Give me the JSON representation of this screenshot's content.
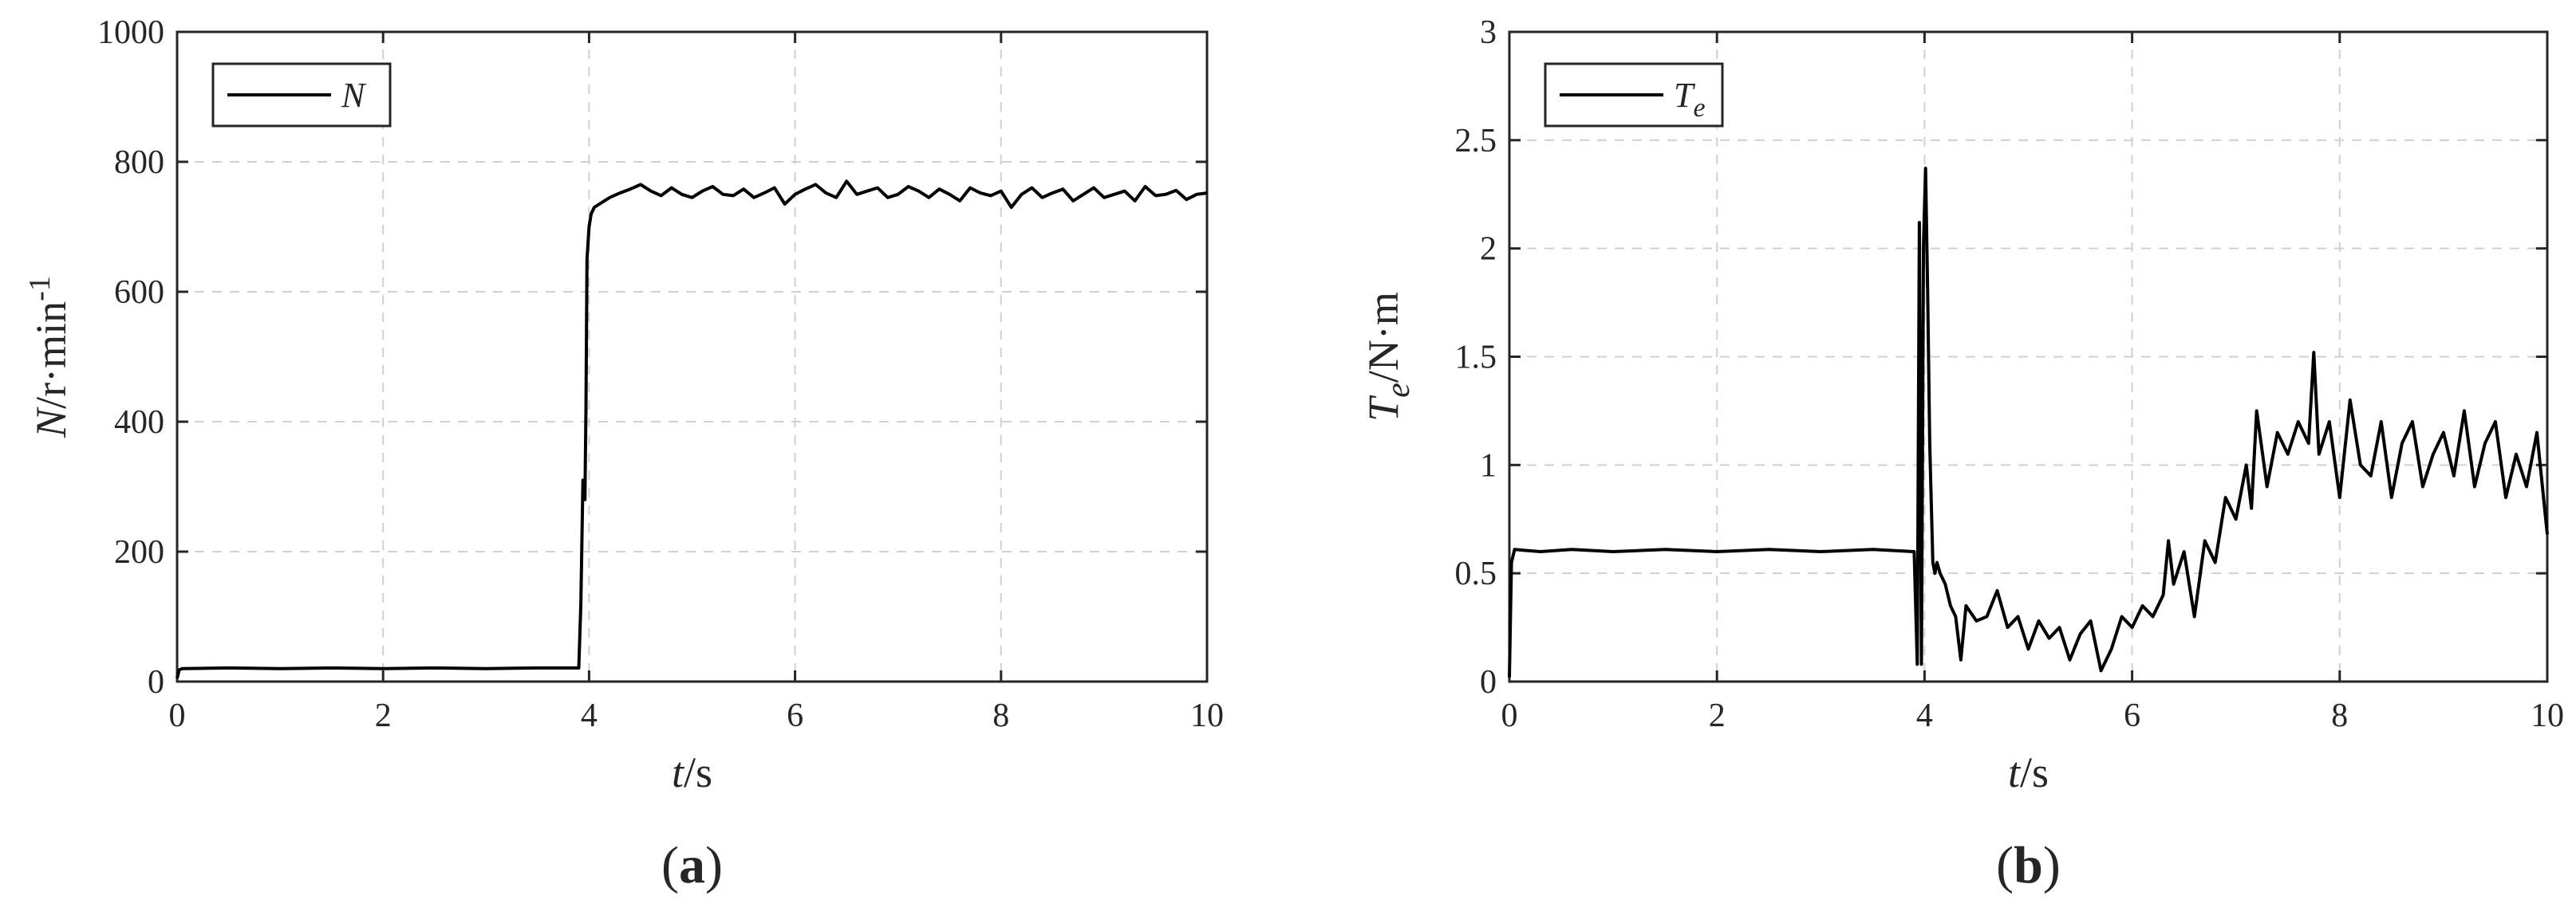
{
  "chart_data": [
    {
      "panel_label": "(a)",
      "panel_letter": "a",
      "type": "line",
      "xlabel_var": "t",
      "xlabel_unit": "/s",
      "ylabel_var": "N",
      "ylabel_unit": "/r·min",
      "ylabel_sup": "-1",
      "xlim": [
        0,
        10
      ],
      "ylim": [
        0,
        1000
      ],
      "xticks": [
        0,
        2,
        4,
        6,
        8,
        10
      ],
      "yticks": [
        0,
        200,
        400,
        600,
        800,
        1000
      ],
      "grid": true,
      "legend_position": "top-left",
      "series": [
        {
          "name": "N",
          "color": "#000000",
          "x": [
            0,
            0.02,
            0.05,
            0.5,
            1.0,
            1.5,
            2.0,
            2.5,
            3.0,
            3.5,
            3.9,
            3.92,
            3.94,
            3.96,
            3.97,
            3.98,
            4.0,
            4.02,
            4.05,
            4.1,
            4.2,
            4.3,
            4.4,
            4.5,
            4.6,
            4.7,
            4.8,
            4.9,
            5.0,
            5.1,
            5.2,
            5.3,
            5.4,
            5.5,
            5.6,
            5.7,
            5.8,
            5.9,
            6.0,
            6.1,
            6.2,
            6.3,
            6.4,
            6.5,
            6.6,
            6.7,
            6.8,
            6.9,
            7.0,
            7.1,
            7.2,
            7.3,
            7.4,
            7.5,
            7.6,
            7.7,
            7.8,
            7.9,
            8.0,
            8.1,
            8.2,
            8.3,
            8.4,
            8.5,
            8.6,
            8.7,
            8.8,
            8.9,
            9.0,
            9.1,
            9.2,
            9.3,
            9.4,
            9.5,
            9.6,
            9.7,
            9.8,
            9.9,
            10.0
          ],
          "values": [
            5,
            18,
            20,
            21,
            20,
            21,
            20,
            21,
            20,
            21,
            21,
            120,
            310,
            280,
            420,
            650,
            700,
            720,
            730,
            735,
            745,
            752,
            758,
            765,
            755,
            748,
            760,
            750,
            745,
            755,
            762,
            750,
            748,
            758,
            745,
            752,
            760,
            735,
            750,
            758,
            765,
            752,
            745,
            770,
            750,
            755,
            760,
            745,
            750,
            762,
            755,
            745,
            758,
            750,
            740,
            760,
            752,
            748,
            755,
            730,
            750,
            760,
            745,
            752,
            758,
            740,
            750,
            760,
            745,
            750,
            755,
            740,
            762,
            748,
            750,
            756,
            742,
            750,
            752
          ]
        }
      ]
    },
    {
      "panel_label": "(b)",
      "panel_letter": "b",
      "type": "line",
      "xlabel_var": "t",
      "xlabel_unit": "/s",
      "ylabel_var": "T",
      "ylabel_sub": "e",
      "ylabel_unit": "/N·m",
      "xlim": [
        0,
        10
      ],
      "ylim": [
        0,
        3
      ],
      "xticks": [
        0,
        2,
        4,
        6,
        8,
        10
      ],
      "yticks": [
        0,
        0.5,
        1,
        1.5,
        2,
        2.5,
        3
      ],
      "grid": true,
      "legend_position": "top-left",
      "series": [
        {
          "name": "T",
          "name_sub": "e",
          "color": "#000000",
          "x": [
            0,
            0.02,
            0.05,
            0.3,
            0.6,
            1.0,
            1.5,
            2.0,
            2.5,
            3.0,
            3.5,
            3.9,
            3.93,
            3.95,
            3.97,
            3.99,
            4.01,
            4.03,
            4.05,
            4.08,
            4.1,
            4.12,
            4.15,
            4.2,
            4.25,
            4.3,
            4.35,
            4.4,
            4.5,
            4.6,
            4.7,
            4.8,
            4.9,
            5.0,
            5.1,
            5.2,
            5.3,
            5.4,
            5.5,
            5.6,
            5.7,
            5.8,
            5.9,
            6.0,
            6.1,
            6.2,
            6.3,
            6.35,
            6.4,
            6.5,
            6.6,
            6.7,
            6.8,
            6.9,
            7.0,
            7.1,
            7.15,
            7.2,
            7.3,
            7.4,
            7.5,
            7.6,
            7.7,
            7.75,
            7.8,
            7.9,
            8.0,
            8.1,
            8.2,
            8.3,
            8.4,
            8.5,
            8.6,
            8.7,
            8.8,
            8.9,
            9.0,
            9.1,
            9.2,
            9.3,
            9.4,
            9.5,
            9.6,
            9.7,
            9.8,
            9.9,
            10.0
          ],
          "values": [
            0.02,
            0.55,
            0.61,
            0.6,
            0.61,
            0.6,
            0.61,
            0.6,
            0.61,
            0.6,
            0.61,
            0.6,
            0.08,
            2.12,
            0.08,
            2.02,
            2.37,
            1.8,
            1.1,
            0.55,
            0.5,
            0.55,
            0.5,
            0.45,
            0.35,
            0.3,
            0.1,
            0.35,
            0.28,
            0.3,
            0.42,
            0.25,
            0.3,
            0.15,
            0.28,
            0.2,
            0.25,
            0.1,
            0.22,
            0.28,
            0.05,
            0.15,
            0.3,
            0.25,
            0.35,
            0.3,
            0.4,
            0.65,
            0.45,
            0.6,
            0.3,
            0.65,
            0.55,
            0.85,
            0.75,
            1.0,
            0.8,
            1.25,
            0.9,
            1.15,
            1.05,
            1.2,
            1.1,
            1.52,
            1.05,
            1.2,
            0.85,
            1.3,
            1.0,
            0.95,
            1.2,
            0.85,
            1.1,
            1.2,
            0.9,
            1.05,
            1.15,
            0.95,
            1.25,
            0.9,
            1.1,
            1.2,
            0.85,
            1.05,
            0.9,
            1.15,
            0.68
          ]
        }
      ]
    }
  ]
}
